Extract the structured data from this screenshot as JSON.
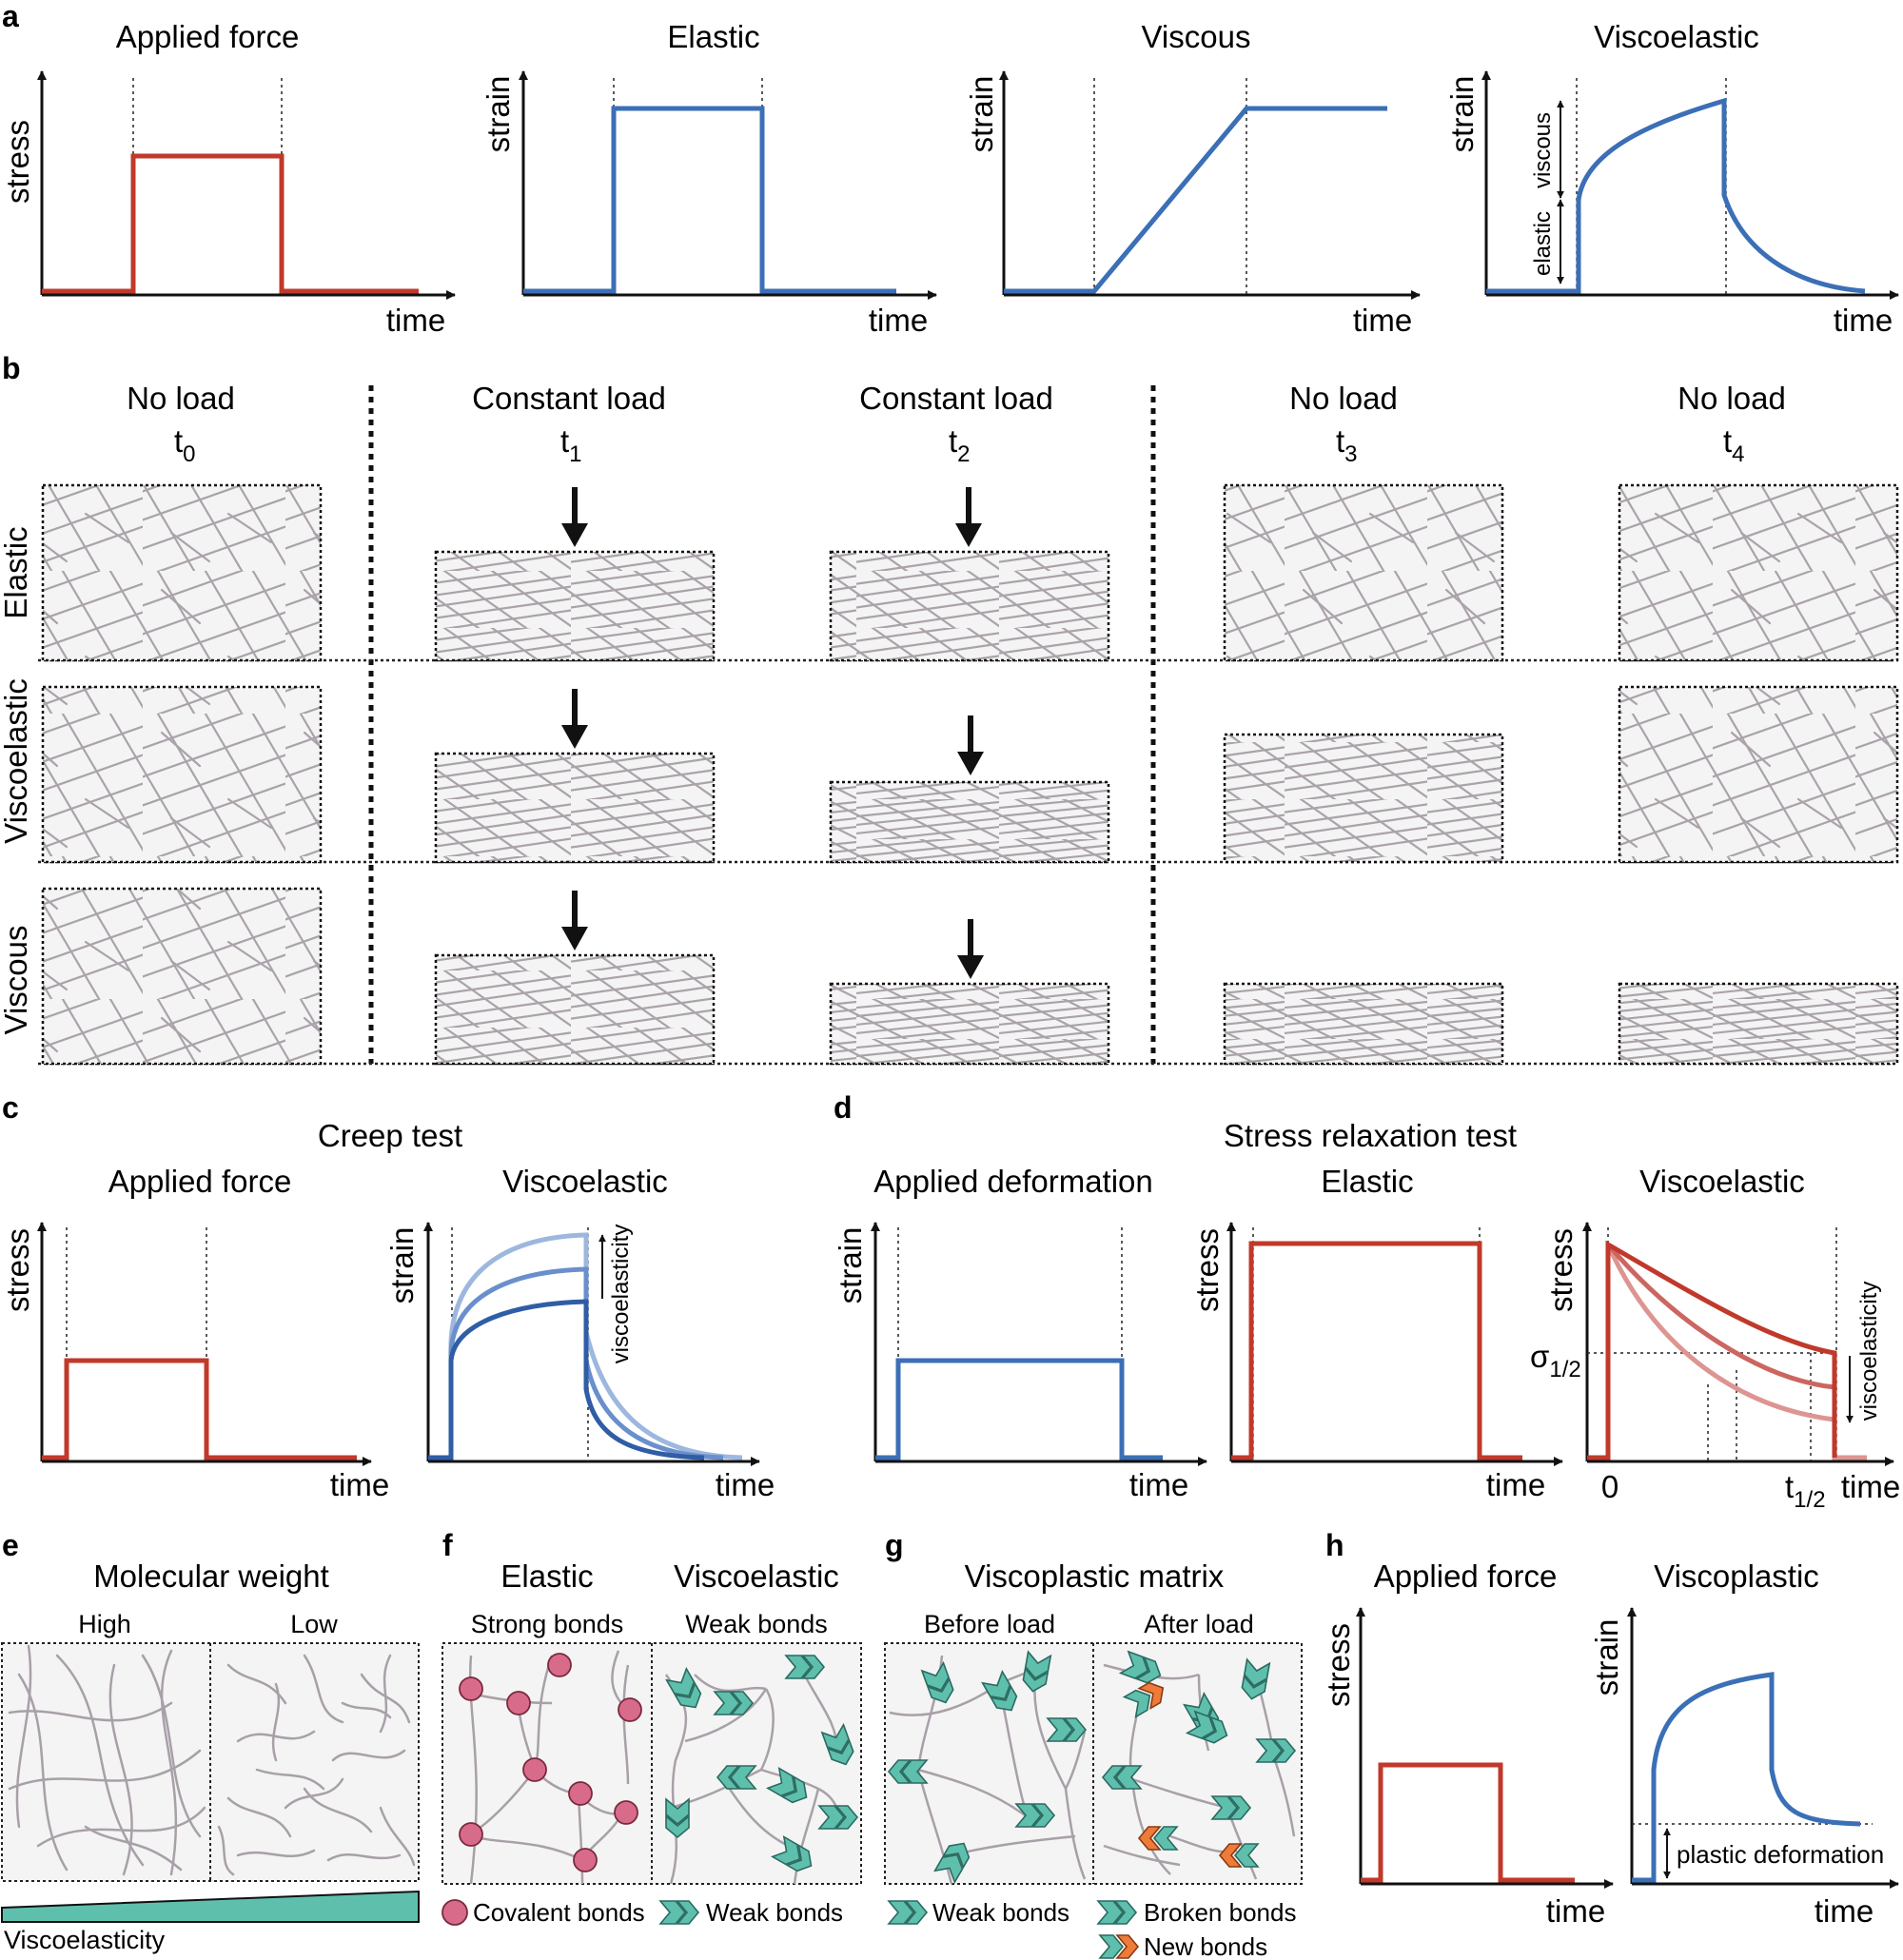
{
  "panel_letters": {
    "a": "a",
    "b": "b",
    "c": "c",
    "d": "d",
    "e": "e",
    "f": "f",
    "g": "g",
    "h": "h"
  },
  "panel_a": {
    "titles": [
      "Applied force",
      "Elastic",
      "Viscous",
      "Viscoelastic"
    ],
    "ylabels": [
      "stress",
      "strain",
      "strain",
      "strain"
    ],
    "xlabel": "time",
    "elastic_label": "elastic",
    "viscous_label": "viscous"
  },
  "panel_b": {
    "columns": [
      {
        "label": "No load",
        "t": "t",
        "sub": "0"
      },
      {
        "label": "Constant load",
        "t": "t",
        "sub": "1"
      },
      {
        "label": "Constant load",
        "t": "t",
        "sub": "2"
      },
      {
        "label": "No load",
        "t": "t",
        "sub": "3"
      },
      {
        "label": "No load",
        "t": "t",
        "sub": "4"
      }
    ],
    "rows": [
      "Elastic",
      "Viscoelastic",
      "Viscous"
    ]
  },
  "panel_c": {
    "title": "Creep test",
    "subtitles": [
      "Applied force",
      "Viscoelastic"
    ],
    "ylabels": [
      "stress",
      "strain"
    ],
    "xlabel": "time",
    "arrow_label": "viscoelasticity"
  },
  "panel_d": {
    "title": "Stress relaxation test",
    "subtitles": [
      "Applied deformation",
      "Elastic",
      "Viscoelastic"
    ],
    "ylabels": [
      "strain",
      "stress",
      "stress"
    ],
    "xlabel": "time",
    "sigma": "σ",
    "sigma_sub": "1/2",
    "zero": "0",
    "thalf": "t",
    "thalf_sub": "1/2",
    "arrow_label": "viscoelasticity"
  },
  "panel_e": {
    "title": "Molecular weight",
    "cols": [
      "High",
      "Low"
    ],
    "bar_label": "Viscoelasticity"
  },
  "panel_f": {
    "titles": [
      "Elastic",
      "Viscoelastic"
    ],
    "cols": [
      "Strong bonds",
      "Weak bonds"
    ],
    "legend": [
      "Covalent bonds",
      "Weak bonds"
    ]
  },
  "panel_g": {
    "title": "Viscoplastic matrix",
    "cols": [
      "Before load",
      "After load"
    ],
    "legend": [
      "Weak bonds",
      "Broken bonds",
      "New bonds"
    ]
  },
  "panel_h": {
    "titles": [
      "Applied force",
      "Viscoplastic"
    ],
    "ylabels": [
      "stress",
      "strain"
    ],
    "xlabel": "time",
    "plastic_label": "plastic deformation"
  },
  "colors": {
    "red": "#c0392b",
    "blue": "#3b6fb6",
    "teal": "#5fbfad",
    "pink": "#d96b8a",
    "orange": "#ef7b3a",
    "fiber": "#a8a0a8",
    "box": "#f4f4f4"
  }
}
